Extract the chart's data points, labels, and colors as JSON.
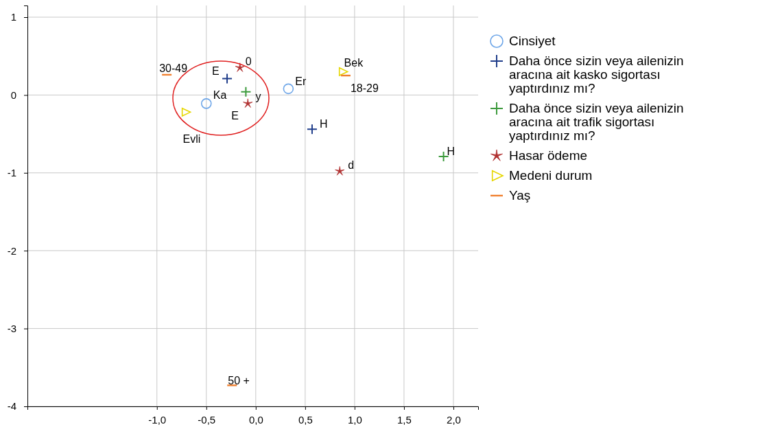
{
  "chart_data": {
    "type": "scatter",
    "xlim": [
      -2.31,
      2.25
    ],
    "ylim": [
      -4,
      1.15
    ],
    "xticks": [
      {
        "value": -1,
        "label": "-1,0"
      },
      {
        "value": -0.5,
        "label": "-0,5"
      },
      {
        "value": 0,
        "label": "0,0"
      },
      {
        "value": 0.5,
        "label": "0,5"
      },
      {
        "value": 1,
        "label": "1,0"
      },
      {
        "value": 1.5,
        "label": "1,5"
      },
      {
        "value": 2,
        "label": "2,0"
      }
    ],
    "yticks": [
      -4,
      -3,
      -2,
      -1,
      0,
      1
    ],
    "grid": true,
    "legend": "right",
    "series": [
      {
        "name": "Cinsiyet",
        "color": "#6ea6e8",
        "marker": "circle",
        "x": [
          -0.5,
          0.33
        ],
        "values": [
          -0.11,
          0.08
        ]
      },
      {
        "name": "Daha önce sizin veya ailenizin aracına ait kasko sigortası yaptırdınız mı?",
        "color": "#1f3d8a",
        "marker": "cross",
        "x": [
          -0.29,
          0.57
        ],
        "values": [
          0.21,
          -0.44
        ]
      },
      {
        "name": "Daha önce sizin veya ailenizin aracına ait trafik sigortası yaptırdınız mı?",
        "color": "#3c9a3c",
        "marker": "cross",
        "x": [
          -0.1,
          1.9
        ],
        "values": [
          0.04,
          -0.79
        ]
      },
      {
        "name": "Hasar ödeme",
        "color": "#b03030",
        "marker": "star",
        "x": [
          -0.16,
          -0.08,
          0.85
        ],
        "values": [
          0.35,
          -0.11,
          -0.98
        ]
      },
      {
        "name": "Medeni durum",
        "color": "#e6d600",
        "marker": "triangle-right",
        "x": [
          0.88,
          -0.71
        ],
        "values": [
          0.3,
          -0.22
        ]
      },
      {
        "name": "Yaş",
        "color": "#f08030",
        "x": [
          -0.9,
          0.91,
          -0.24
        ],
        "values": [
          0.26,
          0.25,
          -3.73
        ]
      }
    ],
    "annotations": [
      {
        "text": "Ka",
        "x": -0.5,
        "y": -0.11
      },
      {
        "text": "Er",
        "x": 0.33,
        "y": 0.08
      },
      {
        "text": "E",
        "x": -0.29,
        "y": 0.21
      },
      {
        "text": "H",
        "x": 0.57,
        "y": -0.44
      },
      {
        "text": "y",
        "x": -0.1,
        "y": 0.04
      },
      {
        "text": "H",
        "x": 1.9,
        "y": -0.79
      },
      {
        "text": "0",
        "x": -0.16,
        "y": 0.35
      },
      {
        "text": "E",
        "x": -0.08,
        "y": -0.11
      },
      {
        "text": "d",
        "x": 0.85,
        "y": -0.98
      },
      {
        "text": "Bek",
        "x": 0.88,
        "y": 0.3
      },
      {
        "text": "Evli",
        "x": -0.71,
        "y": -0.22
      },
      {
        "text": "30-49",
        "x": -0.9,
        "y": 0.26
      },
      {
        "text": "18-29",
        "x": 0.91,
        "y": 0.25
      },
      {
        "text": "50 +",
        "x": -0.24,
        "y": -3.73
      }
    ]
  }
}
